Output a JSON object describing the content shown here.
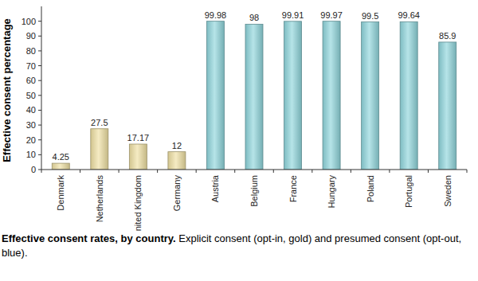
{
  "chart_data": {
    "type": "bar",
    "title": "Effective consent rates, by country.",
    "subtitle": "Explicit consent (opt-in, gold) and presumed consent (opt-out, blue).",
    "y_label": "Effective consent percentage",
    "categories": [
      "Denmark",
      "Netherlands",
      "United Kingdom",
      "Germany",
      "Austria",
      "Belgium",
      "France",
      "Hungary",
      "Poland",
      "Portugal",
      "Sweden"
    ],
    "values": [
      4.25,
      27.5,
      17.17,
      12,
      99.98,
      98,
      99.91,
      99.97,
      99.5,
      99.64,
      85.9
    ],
    "colors": [
      "#efe0a2",
      "#efe0a2",
      "#efe0a2",
      "#efe0a2",
      "#8fd6dc",
      "#8fd6dc",
      "#8fd6dc",
      "#8fd6dc",
      "#8fd6dc",
      "#8fd6dc",
      "#8fd6dc"
    ],
    "ylim": [
      0,
      110
    ],
    "yticks": [
      0,
      10,
      20,
      30,
      40,
      50,
      60,
      70,
      80,
      90,
      100
    ],
    "grid": false,
    "data_labels": true
  }
}
